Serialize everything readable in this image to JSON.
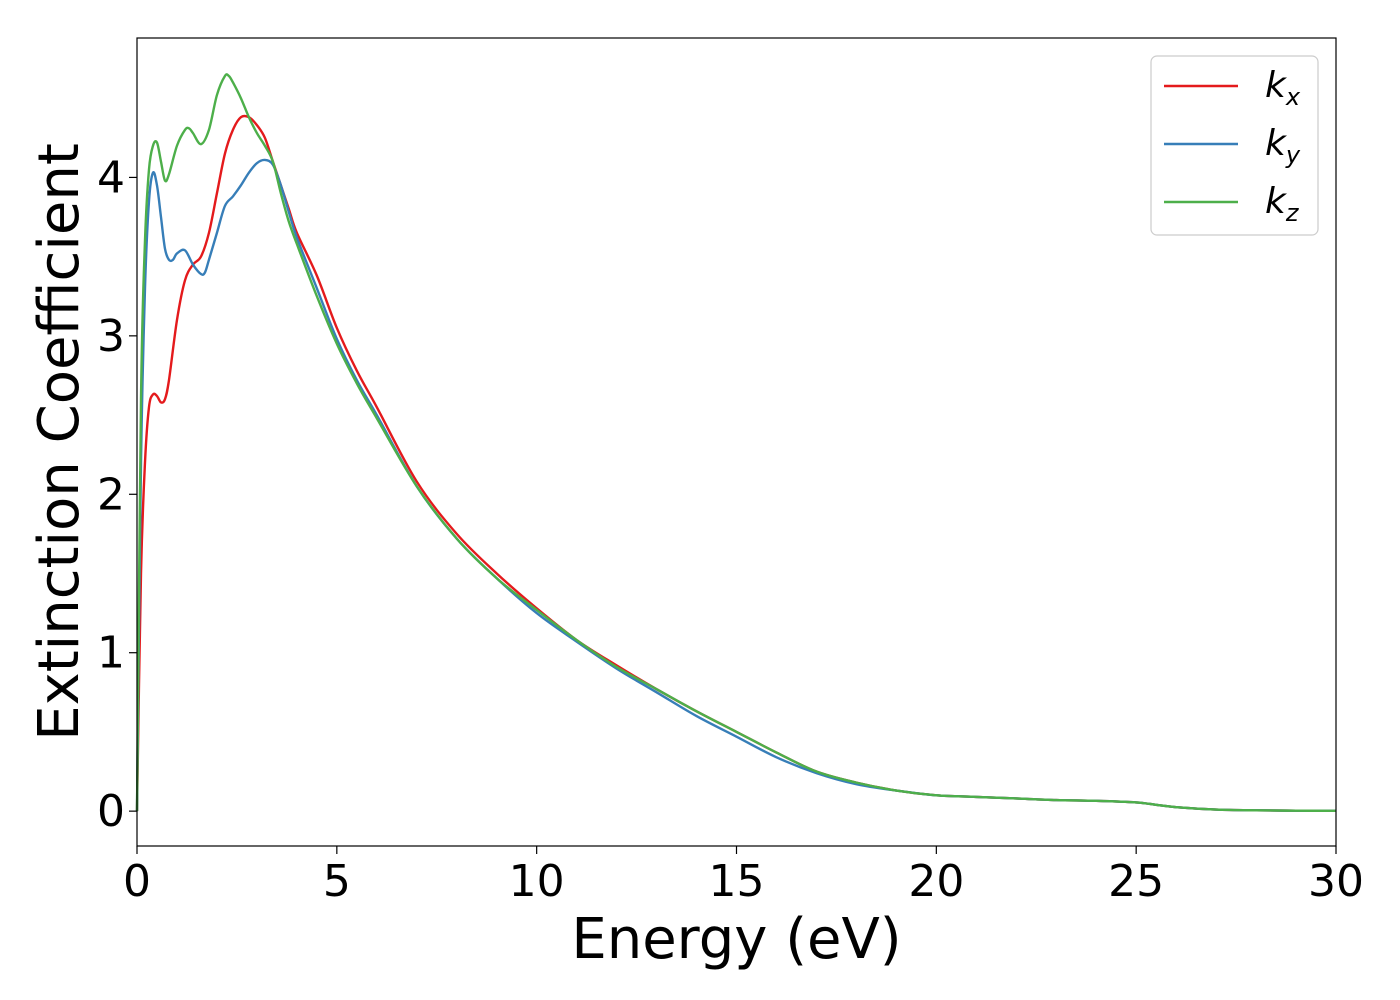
{
  "chart_data": {
    "type": "line",
    "xlabel": "Energy (eV)",
    "ylabel": "Extinction Coefficient",
    "xlim": [
      0,
      30
    ],
    "ylim": [
      -0.22,
      4.88
    ],
    "xticks": [
      0,
      5,
      10,
      15,
      20,
      25,
      30
    ],
    "yticks": [
      0,
      1,
      2,
      3,
      4
    ],
    "grid": false,
    "legend_position": "top-right",
    "series": [
      {
        "name": "kx",
        "label_base": "k",
        "label_sub": "x",
        "color": "#e41a1c",
        "x": [
          0,
          0.1,
          0.2,
          0.3,
          0.4,
          0.5,
          0.6,
          0.7,
          0.8,
          1.0,
          1.2,
          1.4,
          1.6,
          1.8,
          2.0,
          2.2,
          2.4,
          2.6,
          2.8,
          3.0,
          3.2,
          3.4,
          3.6,
          3.8,
          4.0,
          4.5,
          5.0,
          5.5,
          6.0,
          7.0,
          8.0,
          9.0,
          10.0,
          11.0,
          12.0,
          13.0,
          14.0,
          15.0,
          16.0,
          17.0,
          18.0,
          19.0,
          20.0,
          21.0,
          22.0,
          23.0,
          24.0,
          25.0,
          25.5,
          26.0,
          27.0,
          28.0,
          29.0,
          30.0
        ],
        "y": [
          0,
          1.5,
          2.2,
          2.55,
          2.63,
          2.62,
          2.58,
          2.6,
          2.72,
          3.1,
          3.35,
          3.45,
          3.5,
          3.65,
          3.9,
          4.15,
          4.3,
          4.38,
          4.38,
          4.33,
          4.25,
          4.1,
          3.95,
          3.8,
          3.65,
          3.38,
          3.05,
          2.78,
          2.55,
          2.08,
          1.75,
          1.5,
          1.28,
          1.08,
          0.92,
          0.77,
          0.63,
          0.5,
          0.37,
          0.25,
          0.18,
          0.13,
          0.1,
          0.09,
          0.08,
          0.07,
          0.065,
          0.055,
          0.04,
          0.025,
          0.01,
          0.005,
          0.003,
          0.002
        ]
      },
      {
        "name": "ky",
        "label_base": "k",
        "label_sub": "y",
        "color": "#377eb8",
        "x": [
          0,
          0.1,
          0.2,
          0.3,
          0.4,
          0.5,
          0.6,
          0.7,
          0.8,
          0.9,
          1.0,
          1.2,
          1.4,
          1.6,
          1.7,
          1.8,
          2.0,
          2.2,
          2.4,
          2.6,
          2.8,
          3.0,
          3.2,
          3.4,
          3.6,
          3.8,
          4.0,
          4.5,
          5.0,
          5.5,
          6.0,
          7.0,
          8.0,
          9.0,
          10.0,
          11.0,
          12.0,
          13.0,
          14.0,
          15.0,
          16.0,
          17.0,
          18.0,
          19.0,
          20.0,
          21.0,
          22.0,
          23.0,
          24.0,
          25.0,
          25.5,
          26.0,
          27.0,
          28.0,
          29.0,
          30.0
        ],
        "y": [
          0,
          2.2,
          3.3,
          3.85,
          4.03,
          3.95,
          3.75,
          3.55,
          3.48,
          3.48,
          3.52,
          3.54,
          3.45,
          3.39,
          3.4,
          3.48,
          3.65,
          3.82,
          3.88,
          3.95,
          4.03,
          4.09,
          4.11,
          4.08,
          3.95,
          3.78,
          3.62,
          3.3,
          2.98,
          2.72,
          2.5,
          2.05,
          1.72,
          1.47,
          1.25,
          1.07,
          0.9,
          0.75,
          0.6,
          0.47,
          0.34,
          0.24,
          0.17,
          0.13,
          0.1,
          0.09,
          0.08,
          0.07,
          0.065,
          0.055,
          0.04,
          0.025,
          0.01,
          0.005,
          0.003,
          0.002
        ]
      },
      {
        "name": "kz",
        "label_base": "k",
        "label_sub": "z",
        "color": "#4daf4a",
        "x": [
          0,
          0.1,
          0.2,
          0.3,
          0.4,
          0.5,
          0.6,
          0.7,
          0.8,
          1.0,
          1.2,
          1.3,
          1.4,
          1.6,
          1.8,
          2.0,
          2.2,
          2.3,
          2.4,
          2.6,
          2.8,
          3.0,
          3.2,
          3.4,
          3.6,
          3.8,
          4.0,
          4.5,
          5.0,
          5.5,
          6.0,
          7.0,
          8.0,
          9.0,
          10.0,
          11.0,
          12.0,
          13.0,
          14.0,
          15.0,
          16.0,
          17.0,
          18.0,
          19.0,
          20.0,
          21.0,
          22.0,
          23.0,
          24.0,
          25.0,
          25.5,
          26.0,
          27.0,
          28.0,
          29.0,
          30.0
        ],
        "y": [
          0,
          2.6,
          3.6,
          4.05,
          4.2,
          4.22,
          4.1,
          3.98,
          4.02,
          4.2,
          4.3,
          4.31,
          4.28,
          4.21,
          4.3,
          4.52,
          4.64,
          4.64,
          4.6,
          4.5,
          4.38,
          4.28,
          4.2,
          4.1,
          3.9,
          3.72,
          3.58,
          3.25,
          2.95,
          2.7,
          2.48,
          2.05,
          1.72,
          1.47,
          1.27,
          1.08,
          0.91,
          0.77,
          0.63,
          0.5,
          0.37,
          0.25,
          0.18,
          0.13,
          0.1,
          0.09,
          0.08,
          0.07,
          0.065,
          0.055,
          0.04,
          0.025,
          0.01,
          0.005,
          0.003,
          0.002
        ]
      }
    ]
  }
}
